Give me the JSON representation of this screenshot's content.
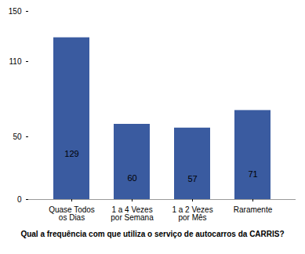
{
  "chart_data": {
    "type": "bar",
    "categories": [
      "Quase Todos os Dias",
      "1 a 4 Vezes por Semana",
      "1 a 2 Vezes por Mês",
      "Raramente"
    ],
    "values": [
      129,
      60,
      57,
      71
    ],
    "color": "#3A5BA0",
    "xlabel": "Qual a frequência com que utiliza o serviço de autocarros da CARRIS?",
    "ylim": [
      0,
      150
    ],
    "yticks": [
      0,
      50,
      110,
      150
    ],
    "grid": false,
    "data_labels": true
  }
}
